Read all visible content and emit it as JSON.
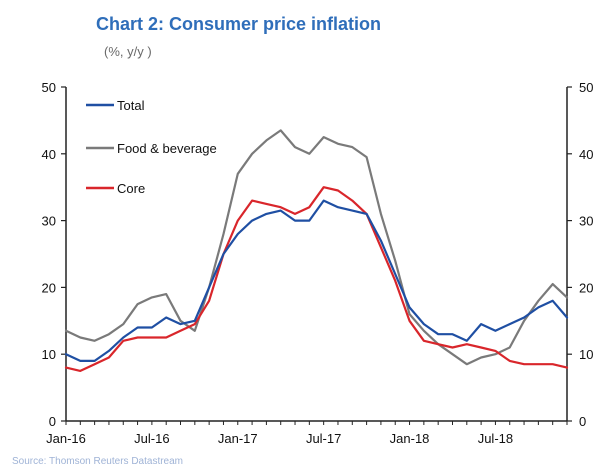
{
  "chart_data": {
    "type": "line",
    "title": "Chart 2: Consumer price inflation",
    "subtitle": "(%, y/y )",
    "source": "Source: Thomson Reuters Datastream",
    "ylim": [
      0,
      50
    ],
    "yticks": [
      0,
      10,
      20,
      30,
      40,
      50
    ],
    "ytick_labels_right": [
      "0",
      "10",
      "20",
      "30",
      "40",
      "50"
    ],
    "xtick_labels": [
      "Jan-16",
      "Jul-16",
      "Jan-17",
      "Jul-17",
      "Jan-18",
      "Jul-18"
    ],
    "x": [
      "Jan-16",
      "Feb-16",
      "Mar-16",
      "Apr-16",
      "May-16",
      "Jun-16",
      "Jul-16",
      "Aug-16",
      "Sep-16",
      "Oct-16",
      "Nov-16",
      "Dec-16",
      "Jan-17",
      "Feb-17",
      "Mar-17",
      "Apr-17",
      "May-17",
      "Jun-17",
      "Jul-17",
      "Aug-17",
      "Sep-17",
      "Oct-17",
      "Nov-17",
      "Dec-17",
      "Jan-18",
      "Feb-18",
      "Mar-18",
      "Apr-18",
      "May-18",
      "Jun-18",
      "Jul-18",
      "Aug-18",
      "Sep-18",
      "Oct-18",
      "Nov-18",
      "Dec-18"
    ],
    "grid": false,
    "legend_position": "top-left",
    "series": [
      {
        "name": "Total",
        "color": "#1f4fa3",
        "values": [
          10.0,
          9.0,
          9.0,
          10.5,
          12.5,
          14.0,
          14.0,
          15.5,
          14.5,
          15.0,
          20.0,
          25.0,
          28.0,
          30.0,
          31.0,
          31.5,
          30.0,
          30.0,
          33.0,
          32.0,
          31.5,
          31.0,
          27.0,
          22.0,
          17.0,
          14.5,
          13.0,
          13.0,
          12.0,
          14.5,
          13.5,
          14.5,
          15.5,
          17.0,
          18.0,
          15.5
        ]
      },
      {
        "name": "Food & beverage",
        "color": "#7a7a7a",
        "values": [
          13.5,
          12.5,
          12.0,
          13.0,
          14.5,
          17.5,
          18.5,
          19.0,
          15.0,
          13.5,
          20.0,
          28.0,
          37.0,
          40.0,
          42.0,
          43.5,
          41.0,
          40.0,
          42.5,
          41.5,
          41.0,
          39.5,
          31.0,
          24.0,
          16.0,
          13.5,
          11.5,
          10.0,
          8.5,
          9.5,
          10.0,
          11.0,
          15.0,
          18.0,
          20.5,
          18.5
        ]
      },
      {
        "name": "Core",
        "color": "#d9262b",
        "values": [
          8.0,
          7.5,
          8.5,
          9.5,
          12.0,
          12.5,
          12.5,
          12.5,
          13.5,
          14.5,
          18.0,
          25.0,
          30.0,
          33.0,
          32.5,
          32.0,
          31.0,
          32.0,
          35.0,
          34.5,
          33.0,
          31.0,
          26.0,
          21.0,
          15.0,
          12.0,
          11.5,
          11.0,
          11.5,
          11.0,
          10.5,
          9.0,
          8.5,
          8.5,
          8.5,
          8.0
        ]
      }
    ]
  }
}
